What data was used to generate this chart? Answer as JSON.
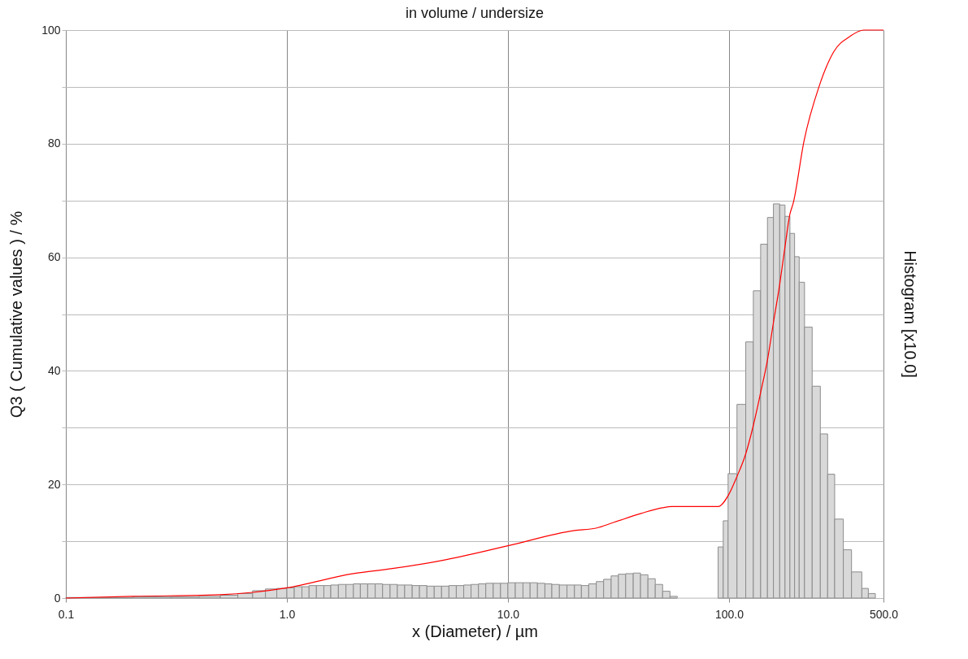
{
  "chart_data": {
    "type": "histogram",
    "title": "in volume / undersize",
    "xlabel": "x (Diameter) / µm",
    "ylabel": "Q3 ( Cumulative values ) / %",
    "y2label": "Histogram [x10.0]",
    "log": "x",
    "xlim": [
      0.1,
      500
    ],
    "ylim": [
      0,
      100
    ],
    "xticks": [
      {
        "value": 0.1,
        "label": "0.1"
      },
      {
        "value": 1,
        "label": "1.0"
      },
      {
        "value": 10,
        "label": "10.0"
      },
      {
        "value": 100,
        "label": "100.0"
      },
      {
        "value": 500,
        "label": "500.0"
      }
    ],
    "yticks": [
      0,
      {
        "value": 10,
        "label": null
      },
      20,
      {
        "value": 30,
        "label": null
      },
      40,
      {
        "value": 50,
        "label": null
      },
      60,
      {
        "value": 70,
        "label": null
      },
      80,
      {
        "value": 90,
        "label": null
      },
      100
    ],
    "grid": true,
    "series": [
      {
        "color": "#d9d9d9",
        "bins": [
          0.1,
          0.2,
          0.3,
          0.4,
          0.5,
          0.6,
          0.7,
          0.8,
          0.9,
          1.0,
          1.08,
          1.17,
          1.26,
          1.36,
          1.47,
          1.58,
          1.71,
          1.85,
          2.0,
          2.15,
          2.32,
          2.51,
          2.71,
          2.93,
          3.16,
          3.41,
          3.69,
          3.98,
          4.3,
          4.64,
          5.01,
          5.41,
          5.84,
          6.31,
          6.81,
          7.36,
          7.94,
          8.58,
          9.26,
          10,
          10.8,
          11.7,
          12.6,
          13.6,
          14.7,
          15.8,
          17.1,
          18.5,
          20.0,
          21.5,
          23.2,
          25.1,
          27.1,
          29.3,
          31.6,
          34.1,
          36.9,
          39.8,
          43.0,
          46.4,
          50.1,
          54.1,
          58.4,
          89.3,
          94.2,
          99.1,
          108.7,
          119.1,
          128.9,
          139.1,
          149.3,
          158.9,
          169.6,
          179.3,
          188.7,
          198.1,
          207.8,
          219.7,
          237.9,
          259.0,
          279.5,
          300.7,
          329.2,
          358.4,
          399.1,
          427.1,
          459.4
        ],
        "values": [
          0.1,
          0.2,
          0.2,
          0.3,
          0.5,
          0.8,
          1.3,
          1.6,
          1.7,
          1.8,
          2.0,
          2.0,
          2.2,
          2.2,
          2.2,
          2.3,
          2.4,
          2.4,
          2.5,
          2.5,
          2.5,
          2.5,
          2.4,
          2.4,
          2.3,
          2.3,
          2.2,
          2.2,
          2.1,
          2.1,
          2.1,
          2.2,
          2.2,
          2.3,
          2.4,
          2.5,
          2.6,
          2.6,
          2.6,
          2.7,
          2.7,
          2.7,
          2.7,
          2.6,
          2.5,
          2.4,
          2.3,
          2.3,
          2.3,
          2.2,
          2.5,
          2.9,
          3.3,
          3.9,
          4.2,
          4.3,
          4.4,
          4.1,
          3.4,
          2.4,
          1.2,
          0.3,
          0,
          9.0,
          13.6,
          21.9,
          34.1,
          45.1,
          54.1,
          62.3,
          67.0,
          69.4,
          69.2,
          67.2,
          64.2,
          60.1,
          55.6,
          47.7,
          37.3,
          28.9,
          21.8,
          13.9,
          8.5,
          4.6,
          1.7,
          0.8
        ]
      },
      {
        "type": "line",
        "color": "#ff0000",
        "marker": "none",
        "line_style": "solid",
        "x": [
          0.1,
          0.2,
          0.5,
          0.7,
          1.0,
          2.0,
          3.0,
          5.0,
          10,
          20,
          25,
          30,
          40,
          50,
          55,
          89.3,
          100,
          108.7,
          119.1,
          128.9,
          139.1,
          149.3,
          158.9,
          169.6,
          179.3,
          188.7,
          195.2,
          218.6,
          255.3,
          298.1,
          353.2,
          406.9,
          500
        ],
        "values": [
          0,
          0.3,
          0.6,
          1.0,
          1.8,
          4.3,
          5.2,
          6.6,
          9.2,
          11.9,
          12.3,
          13.3,
          14.9,
          15.9,
          16.1,
          16.1,
          18.3,
          21.4,
          25.4,
          30.4,
          36.2,
          41.9,
          48.5,
          55.2,
          61.9,
          67.6,
          69.5,
          80.5,
          90.0,
          96.2,
          98.9,
          100,
          100
        ]
      }
    ]
  }
}
